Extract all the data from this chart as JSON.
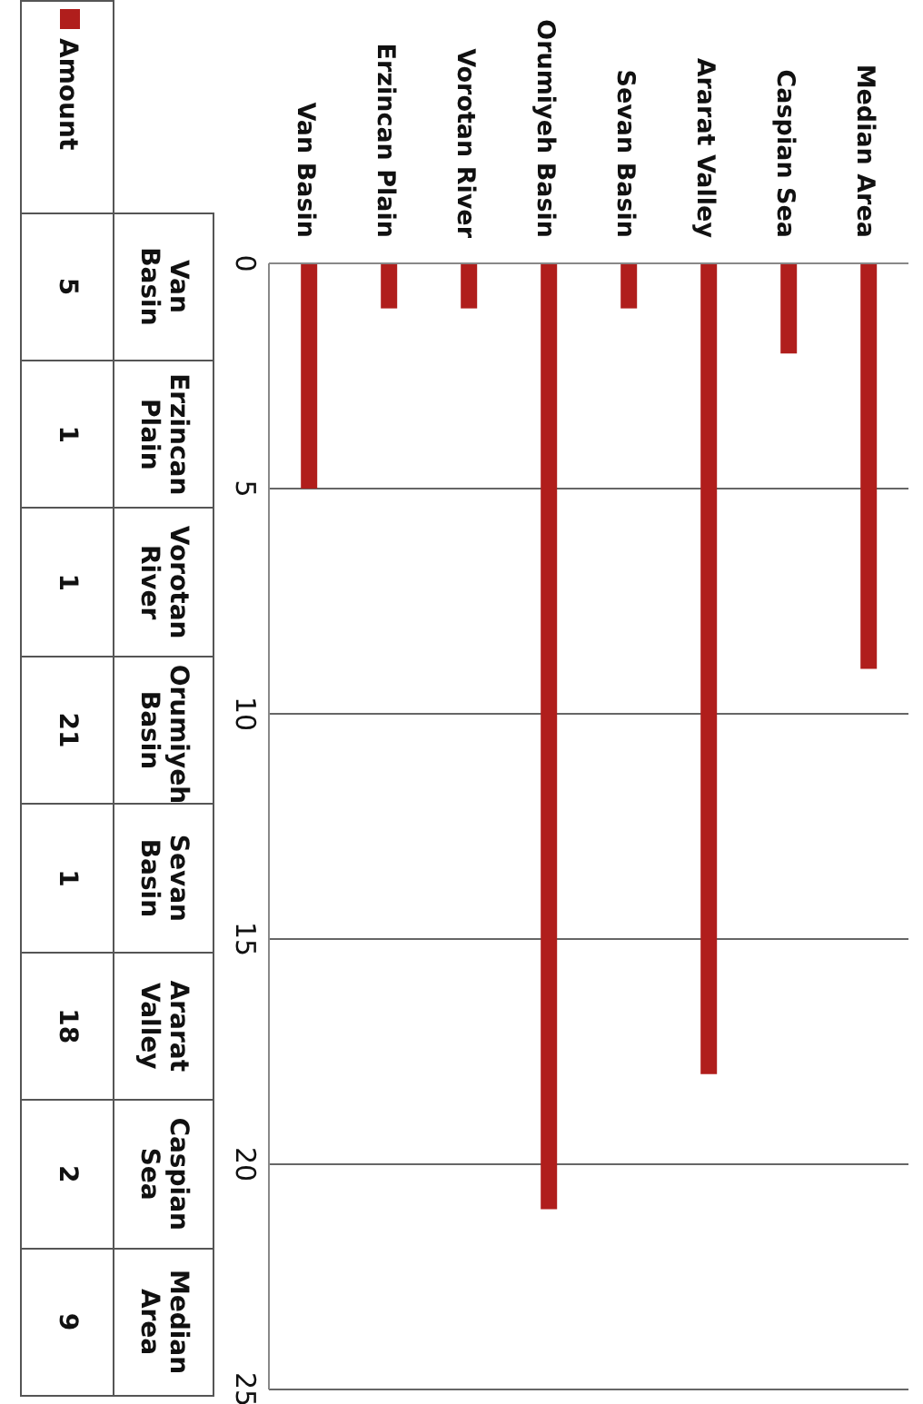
{
  "chart_data": {
    "type": "bar",
    "categories": [
      "Van Basin",
      "Erzincan Plain",
      "Vorotan River",
      "Orumiyeh Basin",
      "Sevan Basin",
      "Ararat Valley",
      "Caspian Sea",
      "Median Area"
    ],
    "series": [
      {
        "name": "Amount",
        "color": "#b01e1c",
        "values": [
          5,
          1,
          1,
          21,
          1,
          18,
          2,
          9
        ]
      }
    ],
    "ylim": [
      25,
      0
    ],
    "yticks": [
      0,
      5,
      10,
      15,
      20,
      25
    ],
    "grid": "y",
    "legend": "top left",
    "annotations": [
      "5",
      "1",
      "1",
      "21",
      "1",
      "18",
      "2",
      "9"
    ]
  }
}
